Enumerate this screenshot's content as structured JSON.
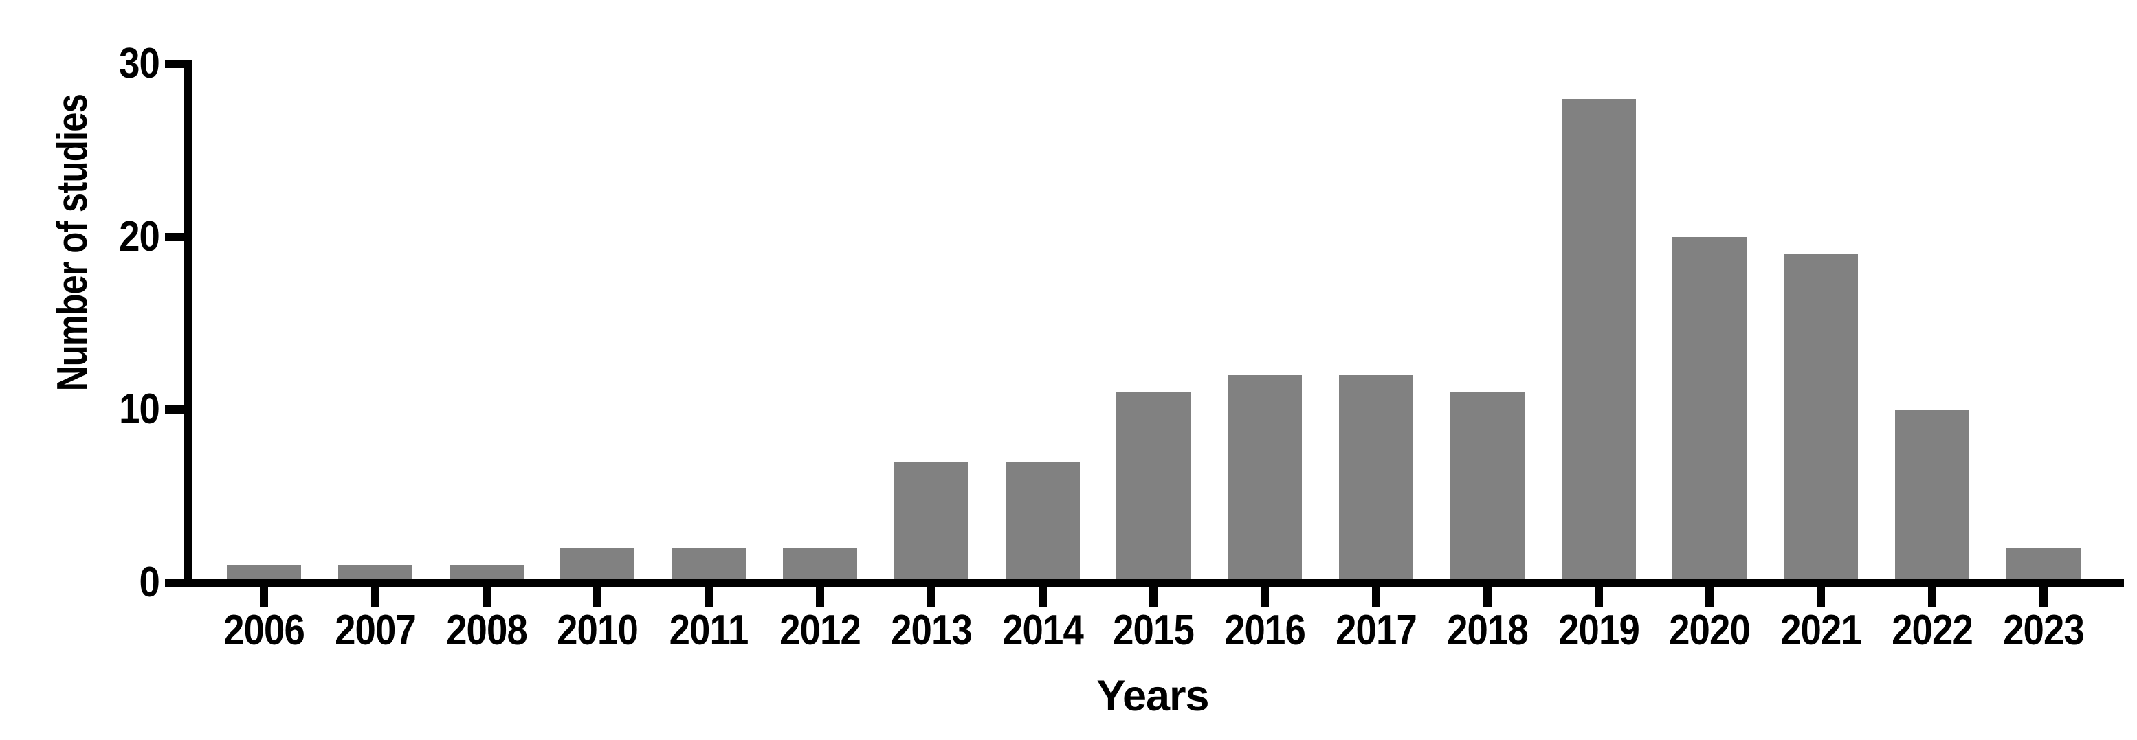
{
  "chart_data": {
    "type": "bar",
    "title": "",
    "categories": [
      "2006",
      "2007",
      "2008",
      "2010",
      "2011",
      "2012",
      "2013",
      "2014",
      "2015",
      "2016",
      "2017",
      "2018",
      "2019",
      "2020",
      "2021",
      "2022",
      "2023"
    ],
    "values": [
      1,
      1,
      1,
      2,
      2,
      2,
      7,
      7,
      11,
      12,
      12,
      11,
      28,
      20,
      19,
      10,
      2
    ],
    "xlabel": "Years",
    "ylabel": "Number of studies",
    "yticks": [
      0,
      10,
      20,
      30
    ],
    "ylim": [
      0,
      30
    ],
    "bar_color": "#818181",
    "axis_color": "#000000",
    "text_color": "#000000",
    "background_color": "#ffffff",
    "grid": false,
    "legend": false,
    "legend_position": "none"
  }
}
